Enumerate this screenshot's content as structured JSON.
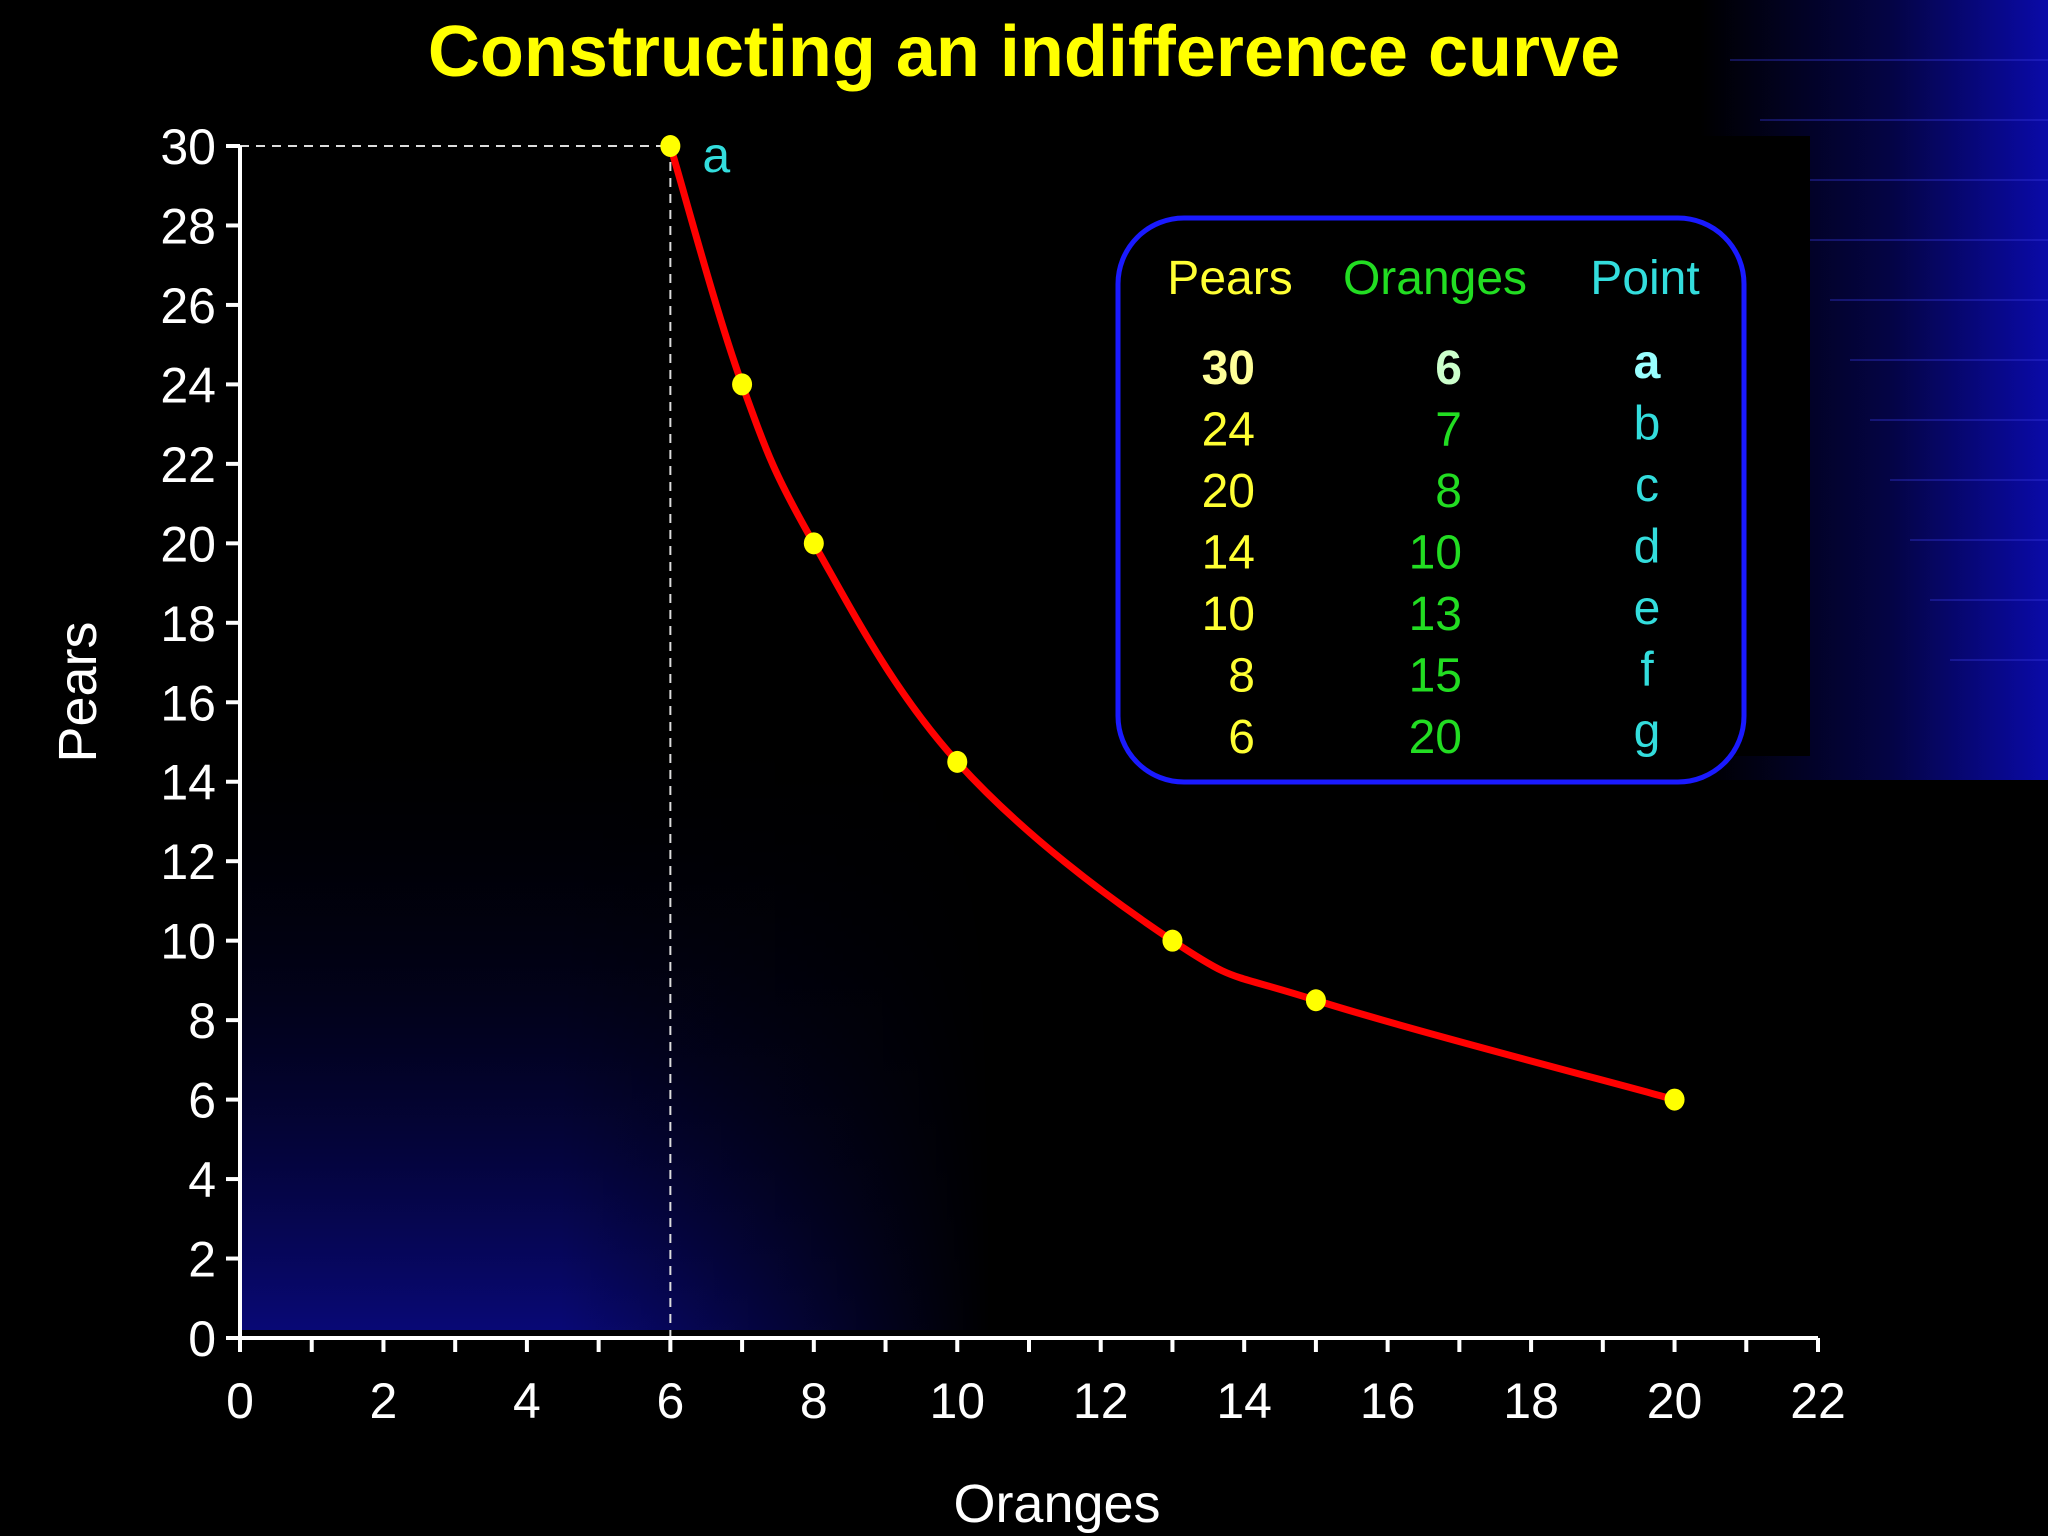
{
  "chart_data": {
    "type": "line",
    "title": "Constructing an indifference curve",
    "xlabel": "Oranges",
    "ylabel": "Pears",
    "xlim": [
      0,
      22
    ],
    "ylim": [
      0,
      30
    ],
    "x_ticks": [
      "0",
      "2",
      "4",
      "6",
      "8",
      "10",
      "12",
      "14",
      "16",
      "18",
      "20",
      "22"
    ],
    "y_ticks": [
      "0",
      "2",
      "4",
      "6",
      "8",
      "10",
      "12",
      "14",
      "16",
      "18",
      "20",
      "22",
      "24",
      "26",
      "28",
      "30"
    ],
    "series": [
      {
        "x": [
          6,
          7,
          8,
          10,
          13,
          15,
          20
        ],
        "y": [
          30,
          24,
          20,
          14.5,
          10,
          8.5,
          6
        ],
        "color": "#ff0000",
        "marker_color": "#ffff00"
      }
    ],
    "annotations": [
      {
        "text": "a",
        "x": 6,
        "y": 30,
        "color": "#33dddd"
      }
    ],
    "guide_lines": {
      "point": [
        6,
        30
      ],
      "style": "dashed"
    },
    "grid": false,
    "table": {
      "headers": [
        "Pears",
        "Oranges",
        "Point"
      ],
      "header_colors": [
        "#ffff33",
        "#22dd22",
        "#33dddd"
      ],
      "rows": [
        {
          "pears": "30",
          "oranges": "6",
          "point": "a",
          "highlight": true
        },
        {
          "pears": "24",
          "oranges": "7",
          "point": "b"
        },
        {
          "pears": "20",
          "oranges": "8",
          "point": "c"
        },
        {
          "pears": "14",
          "oranges": "10",
          "point": "d"
        },
        {
          "pears": "10",
          "oranges": "13",
          "point": "e"
        },
        {
          "pears": "8",
          "oranges": "15",
          "point": "f"
        },
        {
          "pears": "6",
          "oranges": "20",
          "point": "g"
        }
      ],
      "border_color": "#1a1aff"
    },
    "colors": {
      "title": "#ffff00",
      "axis": "#ffffff",
      "background": "#000000",
      "accent_blue": "#0a0a8a"
    }
  }
}
